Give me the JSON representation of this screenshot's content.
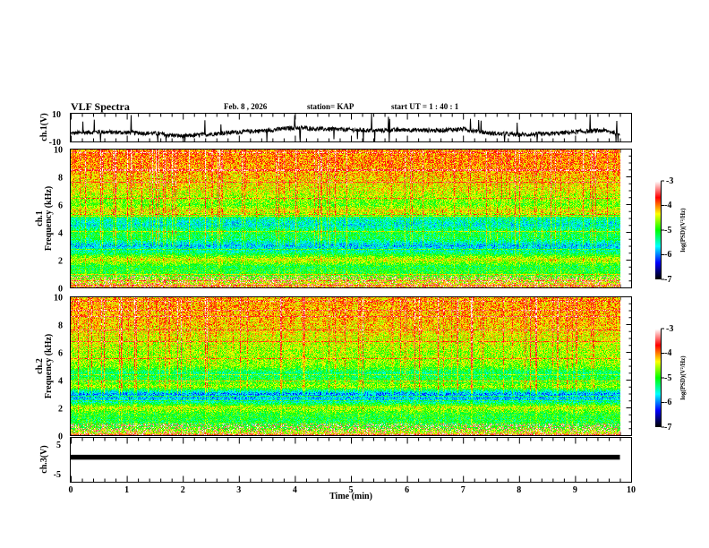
{
  "header": {
    "title": "VLF Spectra",
    "date": "Feb. 8  , 2026",
    "station": "station= KAP",
    "start_ut": "start  UT =   1  : 40 : 1"
  },
  "colors": {
    "frame": "#000000",
    "trace": "#000000",
    "colormap": [
      "#000000",
      "#0000ff",
      "#00ffff",
      "#00ff00",
      "#ffff00",
      "#ff0000",
      "#ffffff"
    ]
  },
  "chart_data": [
    {
      "type": "line",
      "name": "ch1-waveform",
      "ylabel": "ch.1(V)",
      "ylim": [
        -10,
        10
      ],
      "yticks": [
        "10",
        "-10"
      ],
      "xlim": [
        0,
        10
      ],
      "x_end": 9.8,
      "baseline_profile_x": [
        0,
        0.5,
        1.0,
        1.5,
        2.0,
        2.5,
        3.0,
        3.5,
        4.0,
        4.5,
        5.0,
        5.5,
        6.0,
        6.5,
        7.0,
        7.5,
        8.0,
        8.5,
        9.0,
        9.5,
        9.8
      ],
      "baseline_profile_y": [
        -4,
        -3,
        -3.5,
        -4,
        -6,
        -4.5,
        -3,
        -2,
        0,
        -1,
        -1.5,
        -2,
        -1.5,
        -2,
        -1,
        -4,
        -5,
        -4.5,
        -3,
        -2,
        -4
      ]
    },
    {
      "type": "heatmap",
      "name": "ch1-spectrogram",
      "title": "ch.1",
      "ylabel": "Frequency  (kHz)",
      "ylim": [
        0,
        10
      ],
      "yticks": [
        "0",
        "2",
        "4",
        "6",
        "8",
        "10"
      ],
      "xlim": [
        0,
        10
      ],
      "x_end": 9.8,
      "zlim": [
        -7,
        -3
      ],
      "colorbar_label": "log(PSD)(V²/Hz)",
      "colorbar_ticks": [
        "-3",
        "-4",
        "-5",
        "-6",
        "-7"
      ],
      "band_freq_khz": [
        0,
        0.5,
        1.0,
        1.5,
        2.0,
        2.5,
        3.0,
        3.5,
        4.0,
        4.5,
        5.0,
        5.5,
        6.0,
        7.0,
        8.0,
        9.0,
        10.0
      ],
      "band_mean_logpsd": [
        -4.2,
        -4.6,
        -5.0,
        -5.1,
        -4.4,
        -5.3,
        -5.8,
        -5.2,
        -5.1,
        -5.6,
        -5.4,
        -4.3,
        -4.8,
        -4.4,
        -4.2,
        -4.0,
        -4.0
      ]
    },
    {
      "type": "heatmap",
      "name": "ch2-spectrogram",
      "title": "ch.2",
      "ylabel": "Frequency  (kHz)",
      "ylim": [
        0,
        10
      ],
      "yticks": [
        "0",
        "2",
        "4",
        "6",
        "8",
        "10"
      ],
      "xlim": [
        0,
        10
      ],
      "x_end": 9.8,
      "zlim": [
        -7,
        -3
      ],
      "colorbar_label": "log(PSD)(V²/Hz)",
      "colorbar_ticks": [
        "-3",
        "-4",
        "-5",
        "-6",
        "-7"
      ],
      "band_freq_khz": [
        0,
        0.5,
        1.0,
        1.5,
        2.0,
        2.5,
        3.0,
        3.5,
        4.0,
        4.5,
        5.0,
        5.5,
        6.0,
        7.0,
        8.0,
        9.0,
        10.0
      ],
      "band_mean_logpsd": [
        -4.3,
        -4.9,
        -5.1,
        -5.0,
        -4.5,
        -5.7,
        -5.9,
        -4.6,
        -5.0,
        -5.3,
        -4.7,
        -4.6,
        -4.6,
        -4.4,
        -4.2,
        -4.1,
        -4.1
      ]
    },
    {
      "type": "line",
      "name": "ch3-waveform",
      "ylabel": "ch.3(V)",
      "ylim": [
        -5,
        5
      ],
      "yticks": [
        "5",
        "-5"
      ],
      "xlim": [
        0,
        10
      ],
      "x_end": 9.8,
      "level_range": [
        0.2,
        1.8
      ]
    }
  ],
  "x_axis": {
    "label": "Time  (min)",
    "ticks": [
      "0",
      "1",
      "2",
      "3",
      "4",
      "5",
      "6",
      "7",
      "8",
      "9",
      "10"
    ]
  }
}
